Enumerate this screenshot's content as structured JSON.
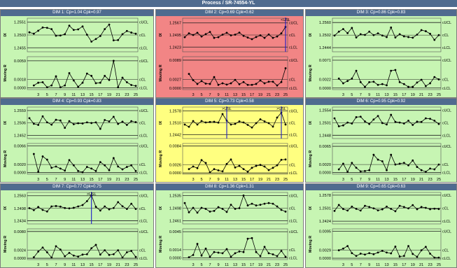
{
  "title": "Process / SR-74554-YL",
  "colors": {
    "ok": "#c7f5b3",
    "warn": "#ffff80",
    "bad": "#f28585",
    "line": "#000000",
    "limit": "#1f1f1f",
    "usl": "#1c1cc8"
  },
  "labels": {
    "ucl": "cUCL",
    "cl": "cCL",
    "lcl": "cLCL",
    "ix": "IX",
    "mr": "Moving R"
  },
  "x_ticks": [
    "3",
    "5",
    "7",
    "9",
    "11",
    "13",
    "15",
    "17",
    "19",
    "21",
    "23",
    "25"
  ],
  "chart_data": [
    {
      "type": "line",
      "title": "DIM 1: Cp=1.04 Cpk=0.97",
      "status": "ok",
      "usl_markers": [],
      "ix": {
        "ucl": "1.2551",
        "cl": "1.2503",
        "lcl": "1.2455",
        "ylim": [
          1.244,
          1.2566
        ],
        "values": [
          1.2513,
          1.2508,
          1.2519,
          1.2531,
          1.253,
          1.2525,
          1.25,
          1.2501,
          1.2506,
          1.2538,
          1.2522,
          1.2524,
          1.2535,
          1.2504,
          1.2478,
          1.2488,
          1.2499,
          1.2525,
          1.2542,
          1.2483,
          1.2484,
          1.2506,
          1.2518,
          1.2512,
          1.2508
        ]
      },
      "mr": {
        "ucl": "0.0059",
        "cl": "0.0018",
        "lcl": "0.0000",
        "ylim": [
          -0.0004,
          0.0068
        ],
        "values": [
          null,
          0.0005,
          0.0011,
          0.0012,
          0.0001,
          0.0005,
          0.0025,
          0.0001,
          0.0005,
          0.0032,
          0.0016,
          0.0002,
          0.0011,
          0.0031,
          0.0026,
          0.001,
          0.0011,
          0.0026,
          0.0017,
          0.0059,
          0.0001,
          0.0022,
          0.0012,
          0.0006,
          0.0004
        ]
      }
    },
    {
      "type": "line",
      "title": "DIM 2: Cp=0.69 Cpk=0.62",
      "status": "bad",
      "usl_markers": [
        {
          "x": 25,
          "label": "<USL"
        }
      ],
      "ix": {
        "ucl": "1.2567",
        "cl": "1.2495",
        "lcl": "1.2423",
        "ylim": [
          1.2395,
          1.2595
        ],
        "values": [
          1.2482,
          1.2505,
          1.2495,
          1.2508,
          1.2486,
          1.25,
          1.2513,
          1.2478,
          1.2482,
          1.2497,
          1.2508,
          1.2493,
          1.2497,
          1.2509,
          1.249,
          1.248,
          1.247,
          1.2483,
          1.2493,
          1.2478,
          1.2498,
          1.2478,
          1.2486,
          1.2505,
          1.2543
        ]
      },
      "mr": {
        "ucl": "0.0089",
        "cl": "0.0027",
        "lcl": "0.0000",
        "ylim": [
          -0.0005,
          0.01
        ],
        "values": [
          null,
          0.0045,
          0.0025,
          0.0013,
          0.0022,
          0.0014,
          0.0013,
          0.0035,
          0.001,
          0.0015,
          0.0011,
          0.0015,
          0.0026,
          0.0012,
          0.0019,
          0.001,
          0.001,
          0.0013,
          0.0024,
          0.0015,
          0.002,
          0.002,
          0.0008,
          0.0019,
          0.0063
        ]
      }
    },
    {
      "type": "line",
      "title": "DIM 3: Cp=0.86 Cpk=0.83",
      "status": "ok",
      "usl_markers": [],
      "ix": {
        "ucl": "1.2560",
        "cl": "1.2502",
        "lcl": "1.2444",
        "ylim": [
          1.2425,
          1.258
        ],
        "values": [
          1.25,
          1.2518,
          1.253,
          1.2511,
          1.2535,
          1.2491,
          1.2506,
          1.2503,
          1.2518,
          1.2502,
          1.251,
          1.25,
          1.2493,
          1.2537,
          1.2491,
          1.2506,
          1.2496,
          1.2493,
          1.249,
          1.2504,
          1.2525,
          1.252,
          1.2508,
          1.248,
          1.2502
        ]
      },
      "mr": {
        "ucl": "0.0071",
        "cl": "0.0022",
        "lcl": "0.0000",
        "ylim": [
          -0.0004,
          0.008
        ],
        "values": [
          null,
          0.0024,
          0.0012,
          0.0018,
          0.0024,
          0.0044,
          0.0015,
          0.0003,
          0.0015,
          0.0016,
          0.0008,
          0.001,
          0.0007,
          0.0044,
          0.0046,
          0.0015,
          0.001,
          0.0003,
          0.0003,
          0.0014,
          0.0021,
          0.0005,
          0.0012,
          0.0028,
          0.0022
        ]
      }
    },
    {
      "type": "line",
      "title": "DIM 4: Cp=0.93 Cpk=0.83",
      "status": "ok",
      "usl_markers": [],
      "ix": {
        "ucl": "1.2559",
        "cl": "1.2506",
        "lcl": "1.2452",
        "ylim": [
          1.2438,
          1.2574
        ],
        "values": [
          1.2526,
          1.2502,
          1.2497,
          1.2534,
          1.2508,
          1.2498,
          1.2519,
          1.2516,
          1.2484,
          1.2513,
          1.25,
          1.2504,
          1.2503,
          1.2508,
          1.2505,
          1.2508,
          1.248,
          1.2518,
          1.2512,
          1.2532,
          1.2501,
          1.2511,
          1.2497,
          1.2513,
          1.2509
        ]
      },
      "mr": {
        "ucl": "0.0066",
        "cl": "0.0020",
        "lcl": "0.0000",
        "ylim": [
          -0.0004,
          0.0072
        ],
        "values": [
          null,
          0.0046,
          0.0002,
          0.004,
          0.0032,
          0.0012,
          0.0015,
          0.001,
          0.0005,
          0.0031,
          0.0018,
          0.0004,
          0.0001,
          0.0014,
          0.001,
          0.0004,
          0.0026,
          0.0018,
          0.0006,
          0.0036,
          0.0015,
          0.0008,
          0.0014,
          0.0018,
          0.0004
        ]
      }
    },
    {
      "type": "line",
      "title": "DIM 5: Cp=0.73 Cpk=0.58",
      "status": "warn",
      "usl_markers": [
        {
          "x": 11,
          "label": ">USL"
        },
        {
          "x": 24,
          "label": ">USL"
        }
      ],
      "ix": {
        "ucl": "1.2578",
        "cl": "1.2510",
        "lcl": "1.2442",
        "ylim": [
          1.242,
          1.26
        ],
        "values": [
          1.25,
          1.2487,
          1.252,
          1.25,
          1.252,
          1.2512,
          1.2515,
          1.2516,
          1.2511,
          1.256,
          1.2522,
          1.25,
          1.2504,
          1.2518,
          1.2512,
          1.2498,
          1.2483,
          1.2508,
          1.253,
          1.2518,
          1.2508,
          1.2488,
          1.254,
          1.2568,
          1.25
        ]
      },
      "mr": {
        "ucl": "0.0084",
        "cl": "0.0026",
        "lcl": "0.0000",
        "ylim": [
          -0.0004,
          0.0092
        ],
        "values": [
          null,
          0.0012,
          0.002,
          0.0015,
          0.004,
          0.0031,
          0.0002,
          0.0012,
          0.0008,
          0.0005,
          0.0028,
          0.0042,
          0.0017,
          0.0022,
          0.0012,
          0.0004,
          0.0016,
          0.0022,
          0.0025,
          0.002,
          0.0009,
          0.0016,
          0.0024,
          0.0041,
          0.0042
        ]
      }
    },
    {
      "type": "line",
      "title": "DIM 6: Cp=0.95 Cpk=0.92",
      "status": "ok",
      "usl_markers": [],
      "ix": {
        "ucl": "1.2554",
        "cl": "1.2501",
        "lcl": "1.2448",
        "ylim": [
          1.2434,
          1.2568
        ],
        "values": [
          1.252,
          1.2486,
          1.249,
          1.2502,
          1.2498,
          1.2525,
          1.2527,
          1.2507,
          1.2496,
          1.2515,
          1.253,
          1.25,
          1.2494,
          1.2535,
          1.2505,
          1.2502,
          1.2498,
          1.251,
          1.2492,
          1.2506,
          1.2505,
          1.252,
          1.2518,
          1.251,
          1.2496
        ]
      },
      "mr": {
        "ucl": "0.0065",
        "cl": "0.0020",
        "lcl": "0.0000",
        "ylim": [
          -0.0004,
          0.0072
        ],
        "values": [
          null,
          0.0008,
          0.0022,
          0.0002,
          0.0024,
          0.0012,
          0.0003,
          0.0004,
          0.0006,
          0.0044,
          0.0032,
          0.0028,
          0.0006,
          0.0044,
          0.002,
          0.0022,
          0.0024,
          0.0018,
          0.003,
          0.0014,
          0.0006,
          0.0002,
          0.001,
          0.0008,
          0.002
        ]
      }
    },
    {
      "type": "line",
      "title": "DIM 7: Cp=0.77 Cpk=0.75",
      "status": "ok",
      "usl_markers": [
        {
          "x": 15,
          "label": ">USL"
        }
      ],
      "ix": {
        "ucl": "1.2563",
        "cl": "1.2498",
        "lcl": "1.2434",
        "ylim": [
          1.2418,
          1.258
        ],
        "values": [
          1.2499,
          1.2489,
          1.2505,
          1.249,
          1.2482,
          1.2508,
          1.251,
          1.2507,
          1.25,
          1.2498,
          1.2501,
          1.2508,
          1.2515,
          1.2535,
          1.2565,
          1.2506,
          1.2487,
          1.2508,
          1.2493,
          1.25,
          1.253,
          1.2509,
          1.2495,
          1.2522,
          1.2495
        ]
      },
      "mr": {
        "ucl": "0.0080",
        "cl": "0.0024",
        "lcl": "0.0000",
        "ylim": [
          -0.0004,
          0.0088
        ],
        "values": [
          null,
          0.0003,
          0.002,
          0.0032,
          0.0018,
          0.0002,
          0.0036,
          0.0026,
          0.0006,
          0.0016,
          0.0008,
          0.0005,
          0.0011,
          0.0012,
          0.003,
          0.004,
          0.0011,
          0.0024,
          0.001,
          0.0012,
          0.0024,
          0.0002,
          0.0018,
          0.0022,
          0.0004
        ]
      }
    },
    {
      "type": "line",
      "title": "DIM 8: Cp=1.36 Cpk=1.31",
      "status": "ok",
      "usl_markers": [],
      "ix": {
        "ucl": "1.2535",
        "cl": "1.2498",
        "lcl": "1.2461",
        "ylim": [
          1.2452,
          1.2544
        ],
        "values": [
          1.2513,
          1.2486,
          1.2499,
          1.2485,
          1.2499,
          1.2496,
          1.2488,
          1.249,
          1.2501,
          1.2496,
          1.2487,
          1.2508,
          1.2496,
          1.2498,
          1.2535,
          1.2506,
          1.2511,
          1.2506,
          1.2508,
          1.2511,
          1.2513,
          1.2511,
          1.2503,
          1.2493,
          1.2488
        ]
      },
      "mr": {
        "ucl": "0.0045",
        "cl": "0.0014",
        "lcl": "0.0000",
        "ylim": [
          -0.0003,
          0.005
        ],
        "values": [
          null,
          0.0001,
          0.0005,
          0.0024,
          0.0004,
          0.0016,
          0.0002,
          0.001,
          0.0009,
          0.0008,
          0.0015,
          0.0002,
          0.0008,
          0.0011,
          0.001,
          0.0033,
          0.0034,
          0.001,
          0.0003,
          0.0019,
          0.0008,
          0.0006,
          0.0003,
          0.0012,
          0.0002
        ]
      }
    },
    {
      "type": "line",
      "title": "DIM 9: Cp=0.65 Cpk=0.63",
      "status": "ok",
      "usl_markers": [],
      "ix": {
        "ucl": "1.2578",
        "cl": "1.2501",
        "lcl": "1.2424",
        "ylim": [
          1.2408,
          1.2594
        ],
        "values": [
          1.2485,
          1.252,
          1.2496,
          1.2487,
          1.251,
          1.2497,
          1.2487,
          1.2515,
          1.2508,
          1.25,
          1.2488,
          1.2494,
          1.251,
          1.2497,
          1.2483,
          1.2515,
          1.2508,
          1.25,
          1.2519,
          1.2495,
          1.2508,
          1.2503,
          1.2495,
          1.2498,
          1.2496
        ]
      },
      "mr": {
        "ucl": "0.0095",
        "cl": "0.0029",
        "lcl": "0.0000",
        "ylim": [
          -0.0005,
          0.0104
        ],
        "values": [
          null,
          0.0028,
          0.0034,
          0.0043,
          0.0018,
          0.0008,
          0.0016,
          0.0013,
          0.0018,
          0.0014,
          0.002,
          0.0026,
          0.002,
          0.0017,
          0.0041,
          0.0006,
          0.0008,
          0.0043,
          0.0015,
          0.0005,
          0.0028,
          0.004,
          0.0016,
          0.0002,
          0.0002
        ]
      }
    }
  ]
}
